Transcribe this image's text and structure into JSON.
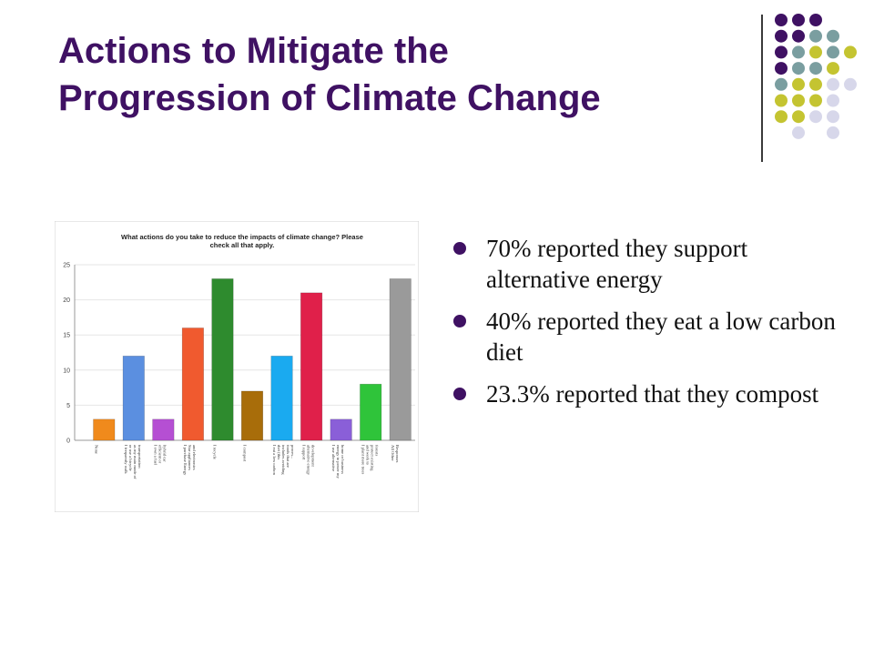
{
  "slide": {
    "title_line1": "Actions to Mitigate the",
    "title_line2": "Progression of Climate Change"
  },
  "bullets": [
    "70% reported they support alternative energy",
    "40% reported they eat a low carbon diet",
    "23.3% reported that they compost"
  ],
  "colors": {
    "title": "#3f1163",
    "bullet": "#3f1163",
    "dot_purple": "#3f1163",
    "dot_teal": "#7a9ea0",
    "dot_olive": "#c4c431",
    "dot_lavender": "#d7d7ea"
  },
  "chart_data": {
    "type": "bar",
    "title": "What actions do you take to reduce the impacts of climate change? Please check all that apply.",
    "ylim": [
      0,
      25
    ],
    "yticks": [
      0,
      5,
      10,
      15,
      20,
      25
    ],
    "grid": true,
    "legend": "none",
    "categories": [
      "None",
      "I frequently walk or use a bicycle as my main mode of transportation",
      "I own a fuel efficient or hybrid car",
      "I purchase Energy Star appliances and electronics",
      "I recycle",
      "I compost",
      "I eat a low carbon diet (this includes avoiding foods that are proces...",
      "I support alternative energy development",
      "I use alternative energy to power my home or business",
      "I plant more trees and work to protect existing forests",
      "All Other Responses"
    ],
    "values": [
      3,
      12,
      3,
      16,
      23,
      7,
      12,
      21,
      3,
      8,
      23
    ],
    "bar_colors": [
      "#f08a1c",
      "#5b8fe0",
      "#b54fd3",
      "#f05a2f",
      "#2e8b2e",
      "#a86d0a",
      "#1aaaf0",
      "#e0204a",
      "#8a5fd8",
      "#2fc43a",
      "#9a9a9a"
    ]
  }
}
